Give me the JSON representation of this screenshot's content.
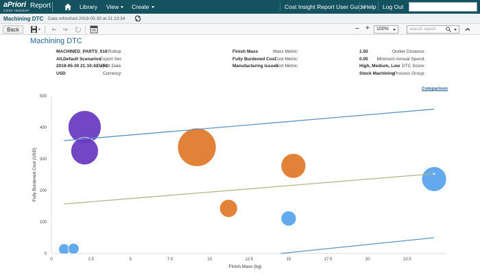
{
  "app": {
    "brand": "aPriori",
    "product": "Report",
    "subtitle": "COST INSIGHT",
    "nav": {
      "library": "Library",
      "view": "View",
      "create": "Create"
    },
    "links": {
      "guide": "Cost Insight Report User Guide",
      "help": "Help",
      "logout": "Log Out"
    }
  },
  "report_bar": {
    "title": "Machining DTC",
    "refreshed": "Data refreshed 2019-05-30 at 21:13:34"
  },
  "toolbar": {
    "back_label": "Back",
    "zoom_value": "100%",
    "search_placeholder": "search report"
  },
  "page": {
    "heading": "Machining DTC"
  },
  "meta": {
    "col1": [
      {
        "label": "Rollup:",
        "value": "MACHINED_PARTS_018"
      },
      {
        "label": "Export Set:",
        "value": "All,Default Scenarios"
      },
      {
        "label": "Export Date:",
        "value": "2019-05-30 21:10:42 UTC"
      },
      {
        "label": "Currency:",
        "value": "USD"
      }
    ],
    "col2": [
      {
        "label": "Mass Metric:",
        "value": "Finish Mass"
      },
      {
        "label": "Cost Metric:",
        "value": "Fully Burdened Cost"
      },
      {
        "label": "Sort Metric:",
        "value": "Manufacturing Issues"
      }
    ],
    "col3": [
      {
        "label": "Outlier Distance:",
        "value": "1.50"
      },
      {
        "label": "Minimum Annual Spend:",
        "value": "0.00"
      },
      {
        "label": "DTC Score:",
        "value": "High, Medium, Low"
      },
      {
        "label": "Process Group:",
        "value": "Stock Machining"
      }
    ]
  },
  "comparison_label": "Comparison",
  "chart_data": {
    "type": "scatter",
    "xlabel": "Finish Mass (kg)",
    "ylabel": "Fully Burdened Cost (USD)",
    "xlim": [
      0,
      24.5
    ],
    "ylim": [
      0,
      500
    ],
    "xticks": [
      0,
      2.5,
      5,
      7.5,
      10,
      12.5,
      15,
      17.5,
      20,
      22.5
    ],
    "xtick_labels": [
      "0",
      "2.5",
      "5",
      "7.5",
      "10",
      "12.5",
      "15",
      "17.5",
      "20",
      "22.5"
    ],
    "yticks": [
      0,
      100,
      200,
      300,
      400,
      500
    ],
    "ytick_labels": [
      "0",
      "100",
      "200",
      "300",
      "400",
      "500"
    ],
    "grid": false,
    "colors": {
      "purple": "#6a3cc1",
      "orange": "#e07b2e",
      "blue": "#5aa5ec",
      "upper_line": "#5b93c4",
      "mid_line": "#b5b38a",
      "lower_line": "#5b93c4"
    },
    "points": [
      {
        "x": 2.1,
        "y": 401,
        "r": 24,
        "color": "purple"
      },
      {
        "x": 2.1,
        "y": 325,
        "r": 20,
        "color": "purple"
      },
      {
        "x": 9.2,
        "y": 337,
        "r": 28,
        "color": "orange"
      },
      {
        "x": 15.3,
        "y": 278,
        "r": 18,
        "color": "orange"
      },
      {
        "x": 11.2,
        "y": 143,
        "r": 13,
        "color": "orange"
      },
      {
        "x": 24.2,
        "y": 236,
        "r": 18,
        "color": "blue"
      },
      {
        "x": 15.0,
        "y": 111,
        "r": 11,
        "color": "blue"
      },
      {
        "x": 0.8,
        "y": 13,
        "r": 8,
        "color": "blue"
      },
      {
        "x": 1.4,
        "y": 15,
        "r": 8,
        "color": "blue"
      }
    ],
    "lines": [
      {
        "x": [
          0.8,
          24.2
        ],
        "y": [
          358,
          458
        ],
        "color": "upper_line"
      },
      {
        "x": [
          0.8,
          24.2
        ],
        "y": [
          157,
          253
        ],
        "color": "mid_line"
      },
      {
        "x": [
          14.5,
          24.2
        ],
        "y": 0,
        "y2": 50,
        "color": "lower_line"
      }
    ]
  }
}
